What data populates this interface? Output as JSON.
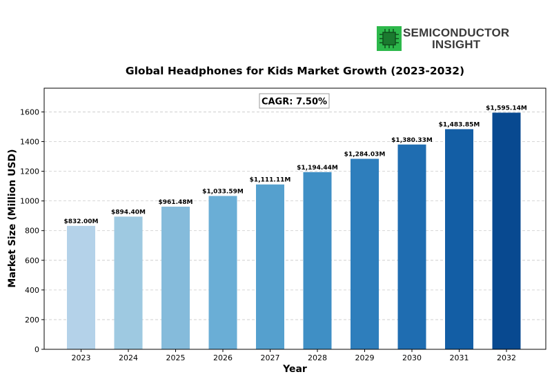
{
  "brand": {
    "line1": "SEMICONDUCTOR",
    "line2": "INSIGHT",
    "mark_color": "#2db84b"
  },
  "chart_data": {
    "type": "bar",
    "title": "Global Headphones for Kids Market Growth (2023-2032)",
    "xlabel": "Year",
    "ylabel": "Market Size (Million USD)",
    "annotation": "CAGR: 7.50%",
    "categories": [
      "2023",
      "2024",
      "2025",
      "2026",
      "2027",
      "2028",
      "2029",
      "2030",
      "2031",
      "2032"
    ],
    "values": [
      832.0,
      894.4,
      961.48,
      1033.59,
      1111.11,
      1194.44,
      1284.03,
      1380.33,
      1483.85,
      1595.14
    ],
    "data_labels": [
      "$832.00M",
      "$894.40M",
      "$961.48M",
      "$1,033.59M",
      "$1,111.11M",
      "$1,194.44M",
      "$1,284.03M",
      "$1,380.33M",
      "$1,483.85M",
      "$1,595.14M"
    ],
    "ylim": [
      0,
      1760
    ],
    "yticks": [
      0,
      200,
      400,
      600,
      800,
      1000,
      1200,
      1400,
      1600
    ],
    "grid": "horizontal dashed",
    "colors": [
      "#b4d2e9",
      "#9ec9e1",
      "#85bbdb",
      "#6aaed6",
      "#55a0ce",
      "#3f8fc5",
      "#2e7ebc",
      "#1f6db1",
      "#135ea5",
      "#084990"
    ]
  }
}
